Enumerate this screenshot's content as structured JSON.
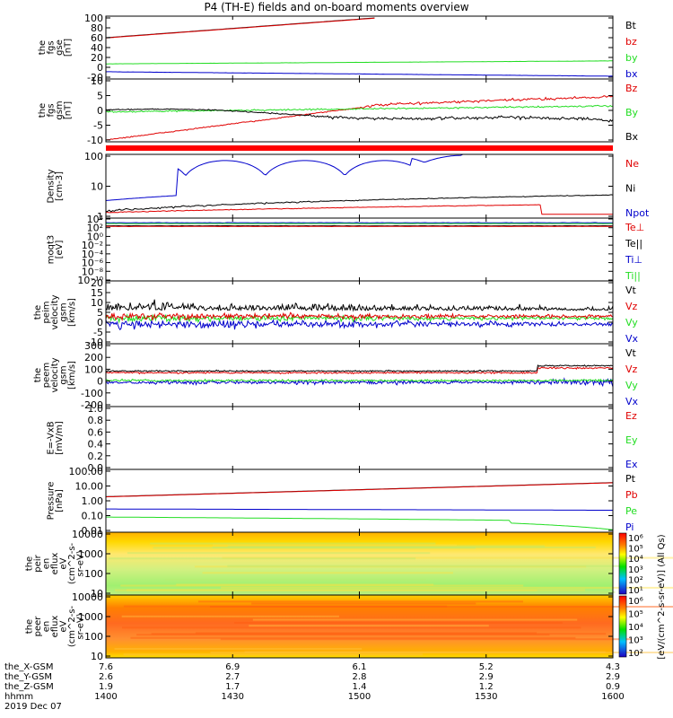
{
  "title": "P4 (TH-E) fields and on-board moments overview",
  "colors": {
    "black": "#000000",
    "red": "#e00000",
    "green": "#22dd22",
    "blue": "#0000cc"
  },
  "chart_data": {
    "type": "line",
    "title": "P4 (TH-E) fields and on-board moments overview",
    "x_axis": {
      "ticks": [
        "1400",
        "1430",
        "1500",
        "1530",
        "1600"
      ],
      "rows": [
        {
          "label": "the_X-GSM",
          "values": [
            "7.6",
            "6.9",
            "6.1",
            "5.2",
            "4.3"
          ]
        },
        {
          "label": "the_Y-GSM",
          "values": [
            "2.6",
            "2.7",
            "2.8",
            "2.9",
            "2.9"
          ]
        },
        {
          "label": "the_Z-GSM",
          "values": [
            "1.9",
            "1.7",
            "1.4",
            "1.2",
            "0.9"
          ]
        },
        {
          "label": "hhmm",
          "values": [
            "1400",
            "1430",
            "1500",
            "1530",
            "1600"
          ]
        }
      ],
      "date": "2019 Dec 07"
    },
    "panels": [
      {
        "id": "fgs-gse",
        "ylabel": [
          "the",
          "fgs",
          "gse",
          "[nT]"
        ],
        "yticks": [
          "100",
          "80",
          "60",
          "40",
          "20",
          "0",
          "-20"
        ],
        "legend": [
          {
            "name": "Bt",
            "color": "#000000"
          },
          {
            "name": "bz",
            "color": "#e00000"
          },
          {
            "name": "by",
            "color": "#22dd22"
          },
          {
            "name": "bx",
            "color": "#0000cc"
          }
        ]
      },
      {
        "id": "fgs-gsm",
        "ylabel": [
          "the",
          "fgs",
          "gsm",
          "[nT]"
        ],
        "yticks": [
          "10",
          "5",
          "0",
          "-5",
          "-10"
        ],
        "legend": [
          {
            "name": "Bz",
            "color": "#e00000"
          },
          {
            "name": "By",
            "color": "#22dd22"
          },
          {
            "name": "Bx",
            "color": "#000000"
          }
        ]
      },
      {
        "id": "density",
        "ylabel": [
          "Density",
          "[cm-3]"
        ],
        "yticks": [
          "100",
          "10",
          "1"
        ],
        "legend": [
          {
            "name": "Ne",
            "color": "#e00000"
          },
          {
            "name": "Ni",
            "color": "#000000"
          },
          {
            "name": "Npot",
            "color": "#0000cc"
          }
        ]
      },
      {
        "id": "temperature",
        "ylabel": [
          "moqt3",
          "[eV]"
        ],
        "yticks": [
          "10⁴",
          "10²",
          "10⁰",
          "10⁻²",
          "10⁻⁴",
          "10⁻⁶",
          "10⁻⁸",
          "10⁻¹⁰"
        ],
        "legend": [
          {
            "name": "Te⊥",
            "color": "#e00000"
          },
          {
            "name": "Te||",
            "color": "#000000"
          },
          {
            "name": "Ti⊥",
            "color": "#0000cc"
          },
          {
            "name": "Ti||",
            "color": "#22dd22"
          }
        ]
      },
      {
        "id": "peim-velocity",
        "ylabel": [
          "the",
          "peim",
          "velocity",
          "gsm",
          "[km/s]"
        ],
        "yticks": [
          "20",
          "15",
          "10",
          "5",
          "0",
          "-5",
          "-10"
        ],
        "legend": [
          {
            "name": "Vt",
            "color": "#000000"
          },
          {
            "name": "Vz",
            "color": "#e00000"
          },
          {
            "name": "Vy",
            "color": "#22dd22"
          },
          {
            "name": "Vx",
            "color": "#0000cc"
          }
        ]
      },
      {
        "id": "peem-velocity",
        "ylabel": [
          "the",
          "peem",
          "velocity",
          "gsm",
          "[km/s]"
        ],
        "yticks": [
          "300",
          "200",
          "100",
          "0",
          "-100",
          "-200"
        ],
        "legend": [
          {
            "name": "Vt",
            "color": "#000000"
          },
          {
            "name": "Vz",
            "color": "#e00000"
          },
          {
            "name": "Vy",
            "color": "#22dd22"
          },
          {
            "name": "Vx",
            "color": "#0000cc"
          }
        ]
      },
      {
        "id": "efield",
        "ylabel": [
          "E=-VxB",
          "[mV/m]"
        ],
        "yticks": [
          "1.0",
          "0.8",
          "0.6",
          "0.4",
          "0.2",
          "0.0"
        ],
        "legend": [
          {
            "name": "Ez",
            "color": "#e00000"
          },
          {
            "name": "Ey",
            "color": "#22dd22"
          },
          {
            "name": "Ex",
            "color": "#0000cc"
          }
        ]
      },
      {
        "id": "pressure",
        "ylabel": [
          "Pressure",
          "[nPa]"
        ],
        "yticks": [
          "100.00",
          "10.00",
          "1.00",
          "0.10",
          "0.01"
        ],
        "legend": [
          {
            "name": "Pt",
            "color": "#000000"
          },
          {
            "name": "Pb",
            "color": "#e00000"
          },
          {
            "name": "Pe",
            "color": "#22dd22"
          },
          {
            "name": "Pi",
            "color": "#0000cc"
          }
        ]
      },
      {
        "id": "peir-spectrogram",
        "ylabel": [
          "the",
          "peir",
          "en",
          "eflux",
          "eV",
          "(cm^2-s-",
          "sr-eV)"
        ],
        "yticks": [
          "10000",
          "1000",
          "100",
          "10"
        ],
        "colorbar_ticks": [
          "10⁶",
          "10⁵",
          "10⁴",
          "10³",
          "10²",
          "10¹"
        ]
      },
      {
        "id": "peer-spectrogram",
        "ylabel": [
          "the",
          "peer",
          "en",
          "eflux",
          "eV",
          "(cm^2-s-",
          "sr-eV)"
        ],
        "yticks": [
          "10000",
          "1000",
          "100",
          "10"
        ],
        "colorbar_ticks": [
          "10⁶",
          "10⁵",
          "10⁴",
          "10³",
          "10²"
        ]
      }
    ],
    "colorbar_label": "[eV/(cm^2-s-sr-eV)] (All Qs)"
  }
}
